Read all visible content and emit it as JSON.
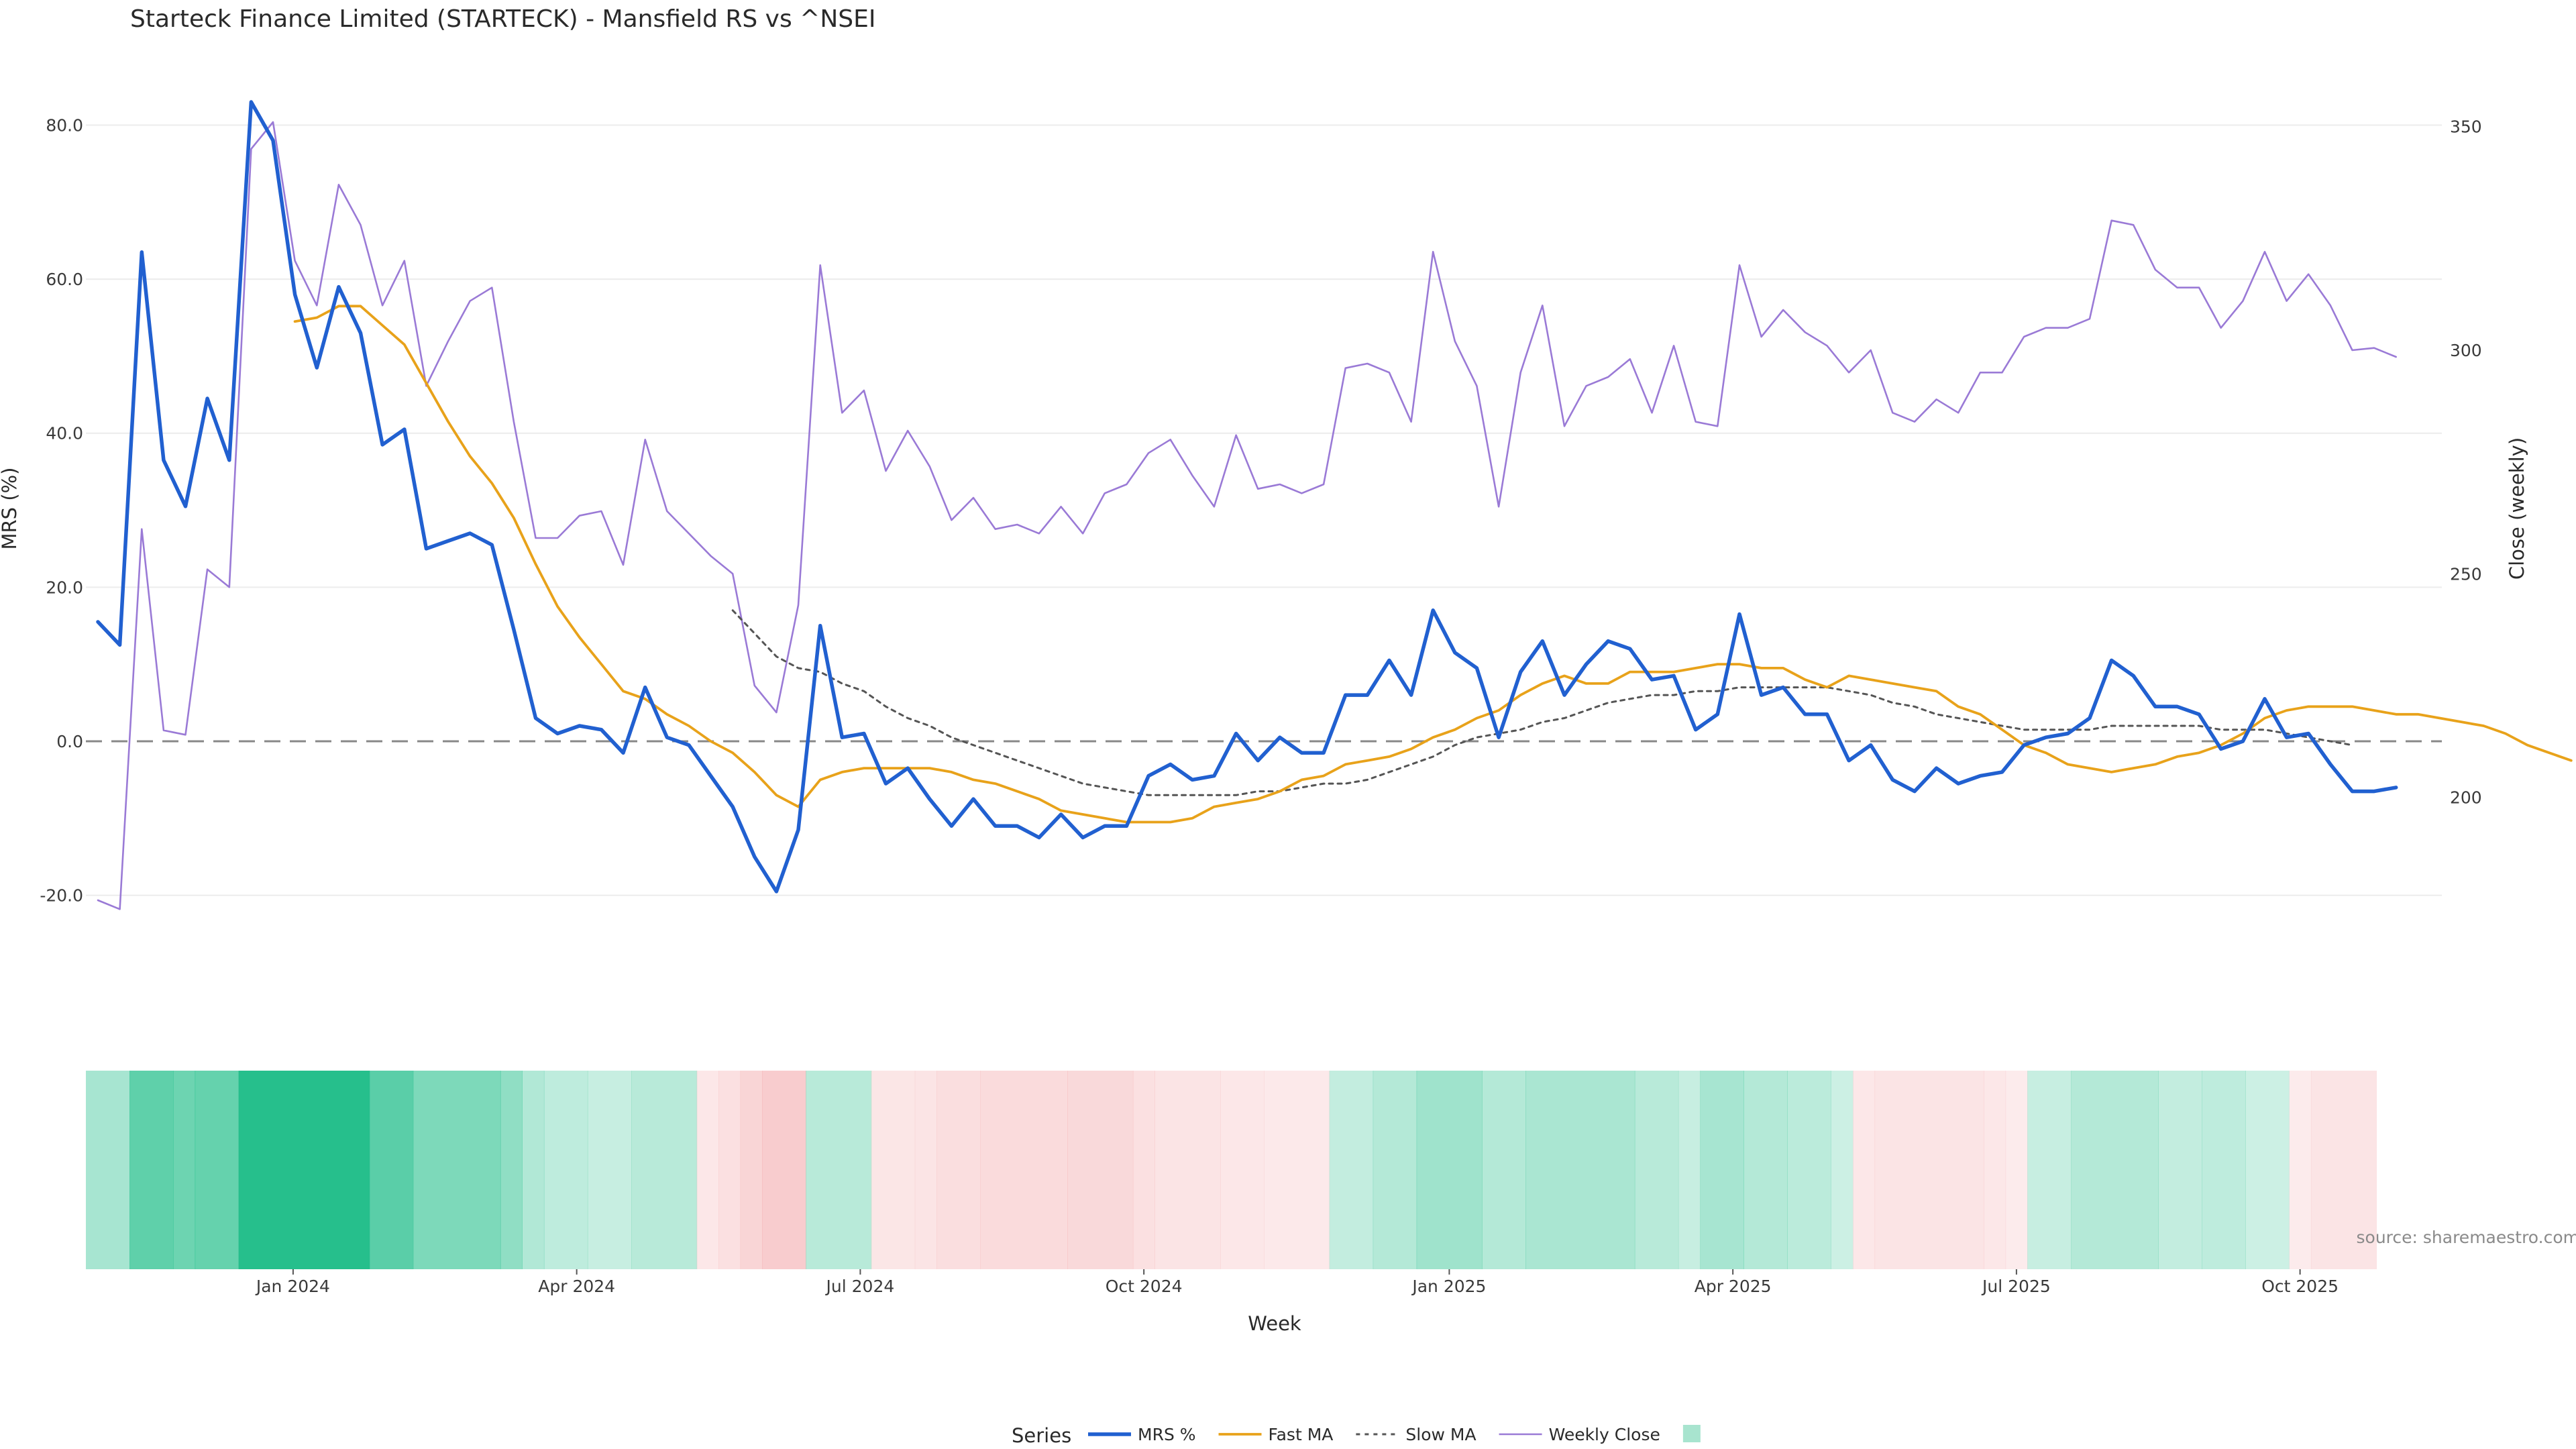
{
  "chart_data": {
    "type": "line",
    "title": "Starteck Finance Limited (STARTECK) - Mansfield RS vs ^NSEI",
    "xlabel": "Week",
    "ylabel_left": "MRS (%)",
    "ylabel_right": "Close (weekly)",
    "y_left": {
      "min": -25,
      "max": 83,
      "ticks": [
        80,
        60,
        40,
        20,
        0,
        -20
      ],
      "tick_labels": [
        "80.0",
        "60.0",
        "40.0",
        "20.0",
        "0.0",
        "-20.0"
      ]
    },
    "y_right": {
      "min": 169.5,
      "max": 355.5,
      "ticks": [
        350,
        300,
        250,
        200
      ],
      "tick_labels": [
        "350",
        "300",
        "250",
        "200"
      ]
    },
    "x_range": {
      "start_week": 0,
      "end_week": 107
    },
    "x_ticks": [
      {
        "week": 9,
        "label": "Jan 2024"
      },
      {
        "week": 22,
        "label": "Apr 2024"
      },
      {
        "week": 35,
        "label": "Jul 2024"
      },
      {
        "week": 48,
        "label": "Oct 2024"
      },
      {
        "week": 62,
        "label": "Jan 2025"
      },
      {
        "week": 75,
        "label": "Apr 2025"
      },
      {
        "week": 88,
        "label": "Jul 2025"
      },
      {
        "week": 101,
        "label": "Oct 2025"
      }
    ],
    "series": [
      {
        "name": "MRS %",
        "color": "#2160d0",
        "axis": "left",
        "start_week": 0,
        "style": "solid-thick",
        "values": [
          15.5,
          12.5,
          63.5,
          36.5,
          30.5,
          44.5,
          36.5,
          83.0,
          78.0,
          58.0,
          48.5,
          59.0,
          53.0,
          38.5,
          40.5,
          25.0,
          26.0,
          27.0,
          25.5,
          14.5,
          3.0,
          1.0,
          2.0,
          1.5,
          -1.5,
          7.0,
          0.5,
          -0.5,
          -4.5,
          -8.5,
          -15.0,
          -19.5,
          -11.5,
          15.0,
          0.5,
          1.0,
          -5.5,
          -3.5,
          -7.5,
          -11.0,
          -7.5,
          -11.0,
          -11.0,
          -12.5,
          -9.5,
          -12.5,
          -11.0,
          -11.0,
          -4.5,
          -3.0,
          -5.0,
          -4.5,
          1.0,
          -2.5,
          0.5,
          -1.5,
          -1.5,
          6.0,
          6.0,
          10.5,
          6.0,
          17.0,
          11.5,
          9.5,
          0.5,
          9.0,
          13.0,
          6.0,
          10.0,
          13.0,
          12.0,
          8.0,
          8.5,
          1.5,
          3.5,
          16.5,
          6.0,
          7.0,
          3.5,
          3.5,
          -2.5,
          -0.5,
          -5.0,
          -6.5,
          -3.5,
          -5.5,
          -4.5,
          -4.0,
          -0.5,
          0.5,
          1.0,
          3.0,
          10.5,
          8.5,
          4.5,
          4.5,
          3.5,
          -1.0,
          0.0,
          5.5,
          0.5,
          1.0,
          -3.0,
          -6.5,
          -6.5,
          -6.0
        ]
      },
      {
        "name": "Fast MA",
        "color": "#e8a21a",
        "axis": "left",
        "start_week": 9,
        "style": "solid",
        "values": [
          54.5,
          55.0,
          56.5,
          56.5,
          54.0,
          51.5,
          46.5,
          41.5,
          37.0,
          33.5,
          29.0,
          23.0,
          17.5,
          13.5,
          10.0,
          6.5,
          5.5,
          3.5,
          2.0,
          0.0,
          -1.5,
          -4.0,
          -7.0,
          -8.5,
          -5.0,
          -4.0,
          -3.5,
          -3.5,
          -3.5,
          -3.5,
          -4.0,
          -5.0,
          -5.5,
          -6.5,
          -7.5,
          -9.0,
          -9.5,
          -10.0,
          -10.5,
          -10.5,
          -10.5,
          -10.0,
          -8.5,
          -8.0,
          -7.5,
          -6.5,
          -5.0,
          -4.5,
          -3.0,
          -2.5,
          -2.0,
          -1.0,
          0.5,
          1.5,
          3.0,
          4.0,
          6.0,
          7.5,
          8.5,
          7.5,
          7.5,
          9.0,
          9.0,
          9.0,
          9.5,
          10.0,
          10.0,
          9.5,
          9.5,
          8.0,
          7.0,
          8.5,
          8.0,
          7.5,
          7.0,
          6.5,
          4.5,
          3.5,
          1.5,
          -0.5,
          -1.5,
          -3.0,
          -3.5,
          -4.0,
          -3.5,
          -3.0,
          -2.0,
          -1.5,
          -0.5,
          1.0,
          3.0,
          4.0,
          4.5,
          4.5,
          4.5,
          4.0,
          3.5,
          3.5,
          3.0,
          2.5,
          2.0,
          1.0,
          -0.5,
          -1.5,
          -2.5
        ]
      },
      {
        "name": "Slow MA",
        "color": "#555555",
        "axis": "left",
        "start_week": 29,
        "style": "dotted",
        "values": [
          17.0,
          14.0,
          11.0,
          9.5,
          9.0,
          7.5,
          6.5,
          4.5,
          3.0,
          2.0,
          0.5,
          -0.5,
          -1.5,
          -2.5,
          -3.5,
          -4.5,
          -5.5,
          -6.0,
          -6.5,
          -7.0,
          -7.0,
          -7.0,
          -7.0,
          -7.0,
          -6.5,
          -6.5,
          -6.0,
          -5.5,
          -5.5,
          -5.0,
          -4.0,
          -3.0,
          -2.0,
          -0.5,
          0.5,
          1.0,
          1.5,
          2.5,
          3.0,
          4.0,
          5.0,
          5.5,
          6.0,
          6.0,
          6.5,
          6.5,
          7.0,
          7.0,
          7.0,
          7.0,
          7.0,
          6.5,
          6.0,
          5.0,
          4.5,
          3.5,
          3.0,
          2.5,
          2.0,
          1.5,
          1.5,
          1.5,
          1.5,
          2.0,
          2.0,
          2.0,
          2.0,
          2.0,
          1.5,
          1.5,
          1.5,
          1.0,
          0.5,
          0.0,
          -0.5
        ]
      },
      {
        "name": "Weekly Close",
        "color": "#9a7ad6",
        "axis": "right",
        "start_week": 0,
        "style": "solid-thin",
        "values": [
          177.0,
          175.0,
          260.0,
          215.0,
          214.0,
          251.0,
          247.0,
          345.0,
          351.0,
          320.0,
          310.0,
          337.0,
          328.0,
          310.0,
          320.0,
          292.0,
          302.0,
          311.0,
          314.0,
          284.0,
          258.0,
          258.0,
          263.0,
          264.0,
          252.0,
          280.0,
          264.0,
          259.0,
          254.0,
          250.0,
          225.0,
          219.0,
          243.0,
          319.0,
          286.0,
          291.0,
          273.0,
          282.0,
          274.0,
          262.0,
          267.0,
          260.0,
          261.0,
          259.0,
          265.0,
          259.0,
          268.0,
          270.0,
          277.0,
          280.0,
          272.0,
          265.0,
          281.0,
          269.0,
          270.0,
          268.0,
          270.0,
          296.0,
          297.0,
          295.0,
          284.0,
          322.0,
          302.0,
          292.0,
          265.0,
          295.0,
          310.0,
          283.0,
          292.0,
          294.0,
          298.0,
          286.0,
          301.0,
          284.0,
          283.0,
          319.0,
          303.0,
          309.0,
          304.0,
          301.0,
          295.0,
          300.0,
          286.0,
          284.0,
          289.0,
          286.0,
          295.0,
          295.0,
          303.0,
          305.0,
          305.0,
          307.0,
          329.0,
          328.0,
          318.0,
          314.0,
          314.0,
          305.0,
          311.0,
          322.0,
          311.0,
          317.0,
          310.0,
          300.0,
          300.5,
          298.5
        ]
      }
    ],
    "zero_line": {
      "value": 0,
      "style": "dashed",
      "color": "#888888"
    },
    "heatmap": {
      "description": "MRS sign strip: green when positive, red when negative, opacity by magnitude",
      "cells": [
        {
          "start": 0,
          "end": 2,
          "value": 13
        },
        {
          "start": 2,
          "end": 4,
          "value": 45
        },
        {
          "start": 4,
          "end": 5,
          "value": 38
        },
        {
          "start": 5,
          "end": 7,
          "value": 42
        },
        {
          "start": 7,
          "end": 13,
          "value": 80
        },
        {
          "start": 13,
          "end": 15,
          "value": 48
        },
        {
          "start": 15,
          "end": 19,
          "value": 30
        },
        {
          "start": 19,
          "end": 20,
          "value": 22
        },
        {
          "start": 20,
          "end": 21,
          "value": 10
        },
        {
          "start": 21,
          "end": 23,
          "value": 6
        },
        {
          "start": 23,
          "end": 25,
          "value": 4
        },
        {
          "start": 25,
          "end": 28,
          "value": 8
        },
        {
          "start": 28,
          "end": 29,
          "value": -4
        },
        {
          "start": 29,
          "end": 30,
          "value": -8
        },
        {
          "start": 30,
          "end": 31,
          "value": -14
        },
        {
          "start": 31,
          "end": 33,
          "value": -19
        },
        {
          "start": 33,
          "end": 36,
          "value": 8
        },
        {
          "start": 36,
          "end": 38,
          "value": -5
        },
        {
          "start": 38,
          "end": 39,
          "value": -6
        },
        {
          "start": 39,
          "end": 41,
          "value": -9
        },
        {
          "start": 41,
          "end": 45,
          "value": -11
        },
        {
          "start": 45,
          "end": 48,
          "value": -12
        },
        {
          "start": 48,
          "end": 49,
          "value": -8
        },
        {
          "start": 49,
          "end": 52,
          "value": -6
        },
        {
          "start": 52,
          "end": 54,
          "value": -4
        },
        {
          "start": 54,
          "end": 57,
          "value": -3
        },
        {
          "start": 57,
          "end": 59,
          "value": 5
        },
        {
          "start": 59,
          "end": 61,
          "value": 9
        },
        {
          "start": 61,
          "end": 64,
          "value": 16
        },
        {
          "start": 64,
          "end": 66,
          "value": 9
        },
        {
          "start": 66,
          "end": 71,
          "value": 12
        },
        {
          "start": 71,
          "end": 73,
          "value": 8
        },
        {
          "start": 73,
          "end": 74,
          "value": 4
        },
        {
          "start": 74,
          "end": 76,
          "value": 13
        },
        {
          "start": 76,
          "end": 78,
          "value": 9
        },
        {
          "start": 78,
          "end": 80,
          "value": 7
        },
        {
          "start": 80,
          "end": 81,
          "value": 3
        },
        {
          "start": 81,
          "end": 82,
          "value": -4
        },
        {
          "start": 82,
          "end": 87,
          "value": -6
        },
        {
          "start": 87,
          "end": 88,
          "value": -4
        },
        {
          "start": 88,
          "end": 89,
          "value": -2
        },
        {
          "start": 89,
          "end": 91,
          "value": 4
        },
        {
          "start": 91,
          "end": 95,
          "value": 9
        },
        {
          "start": 95,
          "end": 97,
          "value": 5
        },
        {
          "start": 97,
          "end": 99,
          "value": 6
        },
        {
          "start": 99,
          "end": 101,
          "value": 3
        },
        {
          "start": 101,
          "end": 102,
          "value": -2
        },
        {
          "start": 102,
          "end": 105,
          "value": -6
        }
      ]
    },
    "legend": {
      "title": "Series",
      "placement": "bottom-center",
      "items": [
        {
          "label": "MRS %",
          "style": "solid-thick",
          "color": "#2160d0"
        },
        {
          "label": "Fast MA",
          "style": "solid",
          "color": "#e8a21a"
        },
        {
          "label": "Slow MA",
          "style": "dotted",
          "color": "#555555"
        },
        {
          "label": "Weekly Close",
          "style": "solid-thin",
          "color": "#9a7ad6"
        },
        {
          "label": "",
          "style": "swatch",
          "color": "#a8e4cf"
        }
      ]
    },
    "source": "source: sharemaestro.com"
  }
}
